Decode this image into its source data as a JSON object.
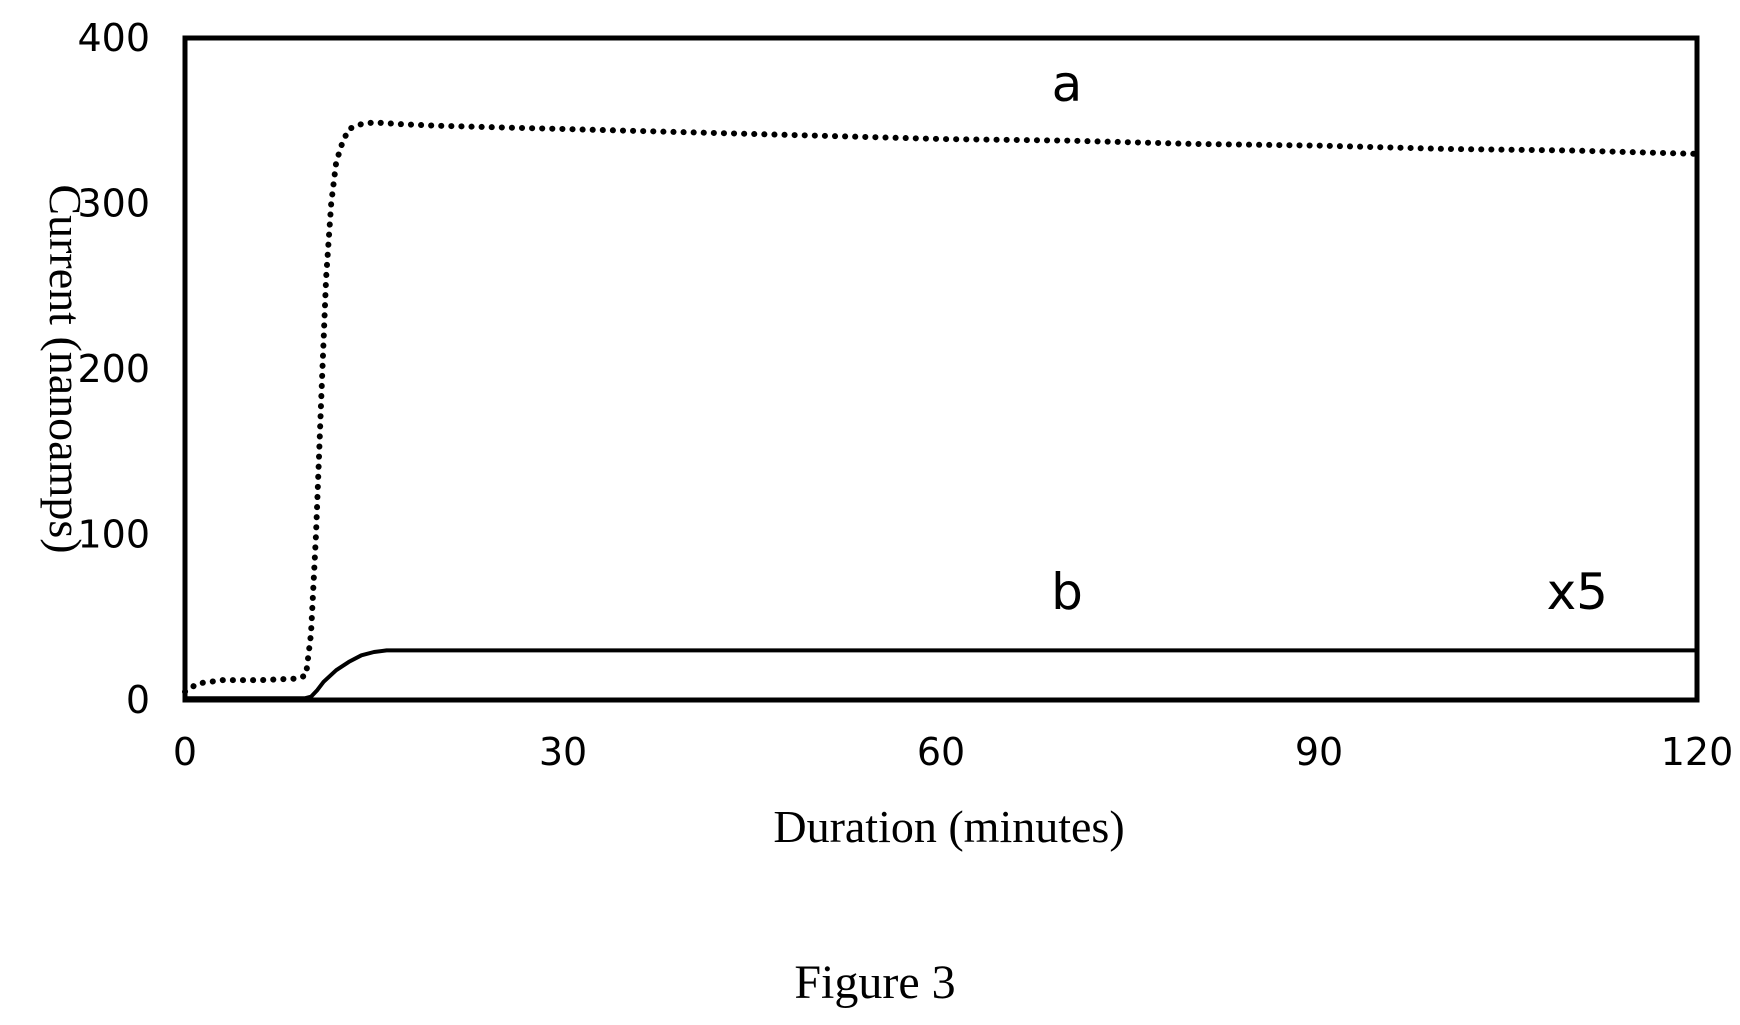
{
  "chart_data": {
    "type": "line",
    "title": "",
    "xlabel": "Duration (minutes)",
    "ylabel": "Current (nanoamps)",
    "xlim": [
      0,
      120
    ],
    "ylim": [
      0,
      400
    ],
    "xticks": [
      "0",
      "30",
      "60",
      "90",
      "120"
    ],
    "yticks": [
      "0",
      "100",
      "200",
      "300",
      "400"
    ],
    "grid": false,
    "legend": "none",
    "series": [
      {
        "name": "a",
        "style": "dotted",
        "x": [
          0,
          1,
          3,
          6,
          9,
          9.6,
          10,
          10.4,
          10.8,
          11.2,
          11.6,
          12,
          12.5,
          13,
          14,
          15,
          17,
          20,
          25,
          30,
          40,
          50,
          60,
          70,
          80,
          90,
          100,
          110,
          120
        ],
        "y": [
          5,
          10,
          12,
          12,
          13,
          15,
          40,
          100,
          180,
          255,
          300,
          325,
          337,
          345,
          348,
          349,
          348,
          347,
          346,
          345,
          343,
          341,
          339,
          338,
          336,
          335,
          333,
          332,
          330
        ]
      },
      {
        "name": "b",
        "style": "solid",
        "x": [
          0,
          5,
          9.5,
          10,
          10.5,
          11,
          12,
          13,
          14,
          15,
          16,
          17,
          20,
          30,
          60,
          90,
          120
        ],
        "y": [
          1,
          1,
          1,
          2,
          6,
          11,
          18,
          23,
          27,
          29,
          30,
          30,
          30,
          30,
          30,
          30,
          30
        ]
      }
    ],
    "annotations": [
      {
        "text": "a",
        "x": 70,
        "y": 362
      },
      {
        "text": "b",
        "x": 70,
        "y": 55
      },
      {
        "text": "x5",
        "x": 110.5,
        "y": 55
      }
    ]
  },
  "caption": "Figure 3"
}
